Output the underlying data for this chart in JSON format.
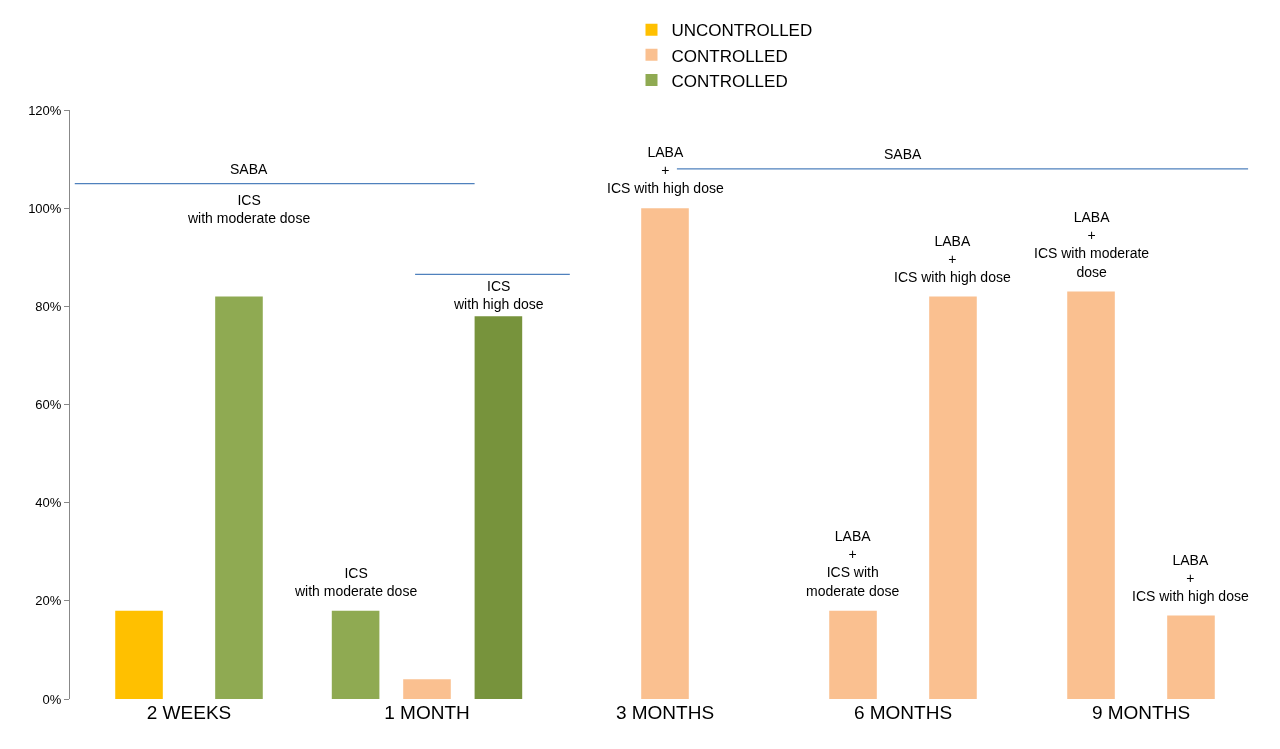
{
  "chart_data": {
    "type": "bar",
    "categories": [
      "2 WEEKS",
      "1 MONTH",
      "3 MONTHS",
      "6 MONTHS",
      "9 MONTHS"
    ],
    "series": [
      {
        "name": "UNCONTROLLED",
        "color": "#ffc000",
        "values": [
          18,
          null,
          null,
          null,
          null
        ]
      },
      {
        "name": "CONTROLLED",
        "color": "#fac090",
        "values": [
          null,
          null,
          null,
          null,
          null
        ]
      },
      {
        "name": "CONTROLLED",
        "color": "#8faa52",
        "values": [
          82,
          18,
          null,
          null,
          null
        ]
      },
      {
        "color": "#fac090",
        "values": [
          null,
          4,
          100,
          18,
          83
        ]
      },
      {
        "color": "#fac090",
        "values": [
          null,
          null,
          null,
          82,
          17
        ]
      },
      {
        "color": "#77933c",
        "values": [
          null,
          78,
          null,
          null,
          null
        ]
      }
    ],
    "ylim": [
      0,
      120
    ],
    "yticks": [
      {
        "value": 0,
        "label": "0%"
      },
      {
        "value": 20,
        "label": "20%"
      },
      {
        "value": 40,
        "label": "40%"
      },
      {
        "value": 60,
        "label": "60%"
      },
      {
        "value": 80,
        "label": "80%"
      },
      {
        "value": 100,
        "label": "100%"
      },
      {
        "value": 120,
        "label": "120%"
      }
    ],
    "grid": false,
    "legend": "top",
    "annotations": [
      "SABA",
      "ICS\nwith moderate dose",
      "ICS\nwith moderate dose",
      "ICS\nwith high dose",
      "LABA\n+\nICS with high dose",
      "SABA",
      "LABA\n+\nICS with\nmoderate dose",
      "LABA\n+\nICS with high dose",
      "LABA\n+\nICS with moderate\ndose",
      "LABA\n+\nICS with high dose"
    ]
  }
}
